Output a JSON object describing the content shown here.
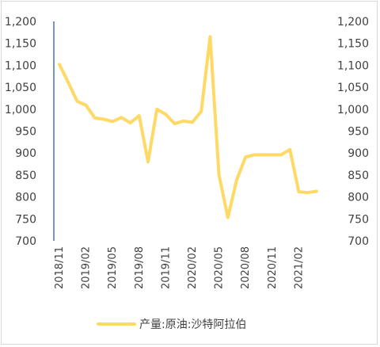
{
  "chart_data": {
    "type": "line",
    "title": "",
    "xlabel": "",
    "ylabel": "",
    "ylim": [
      700,
      1200
    ],
    "y_ticks": [
      700,
      750,
      800,
      850,
      900,
      950,
      1000,
      1050,
      1100,
      1150,
      1200
    ],
    "y_tick_labels": [
      "700",
      "750",
      "800",
      "850",
      "900",
      "950",
      "1,000",
      "1,050",
      "1,100",
      "1,150",
      "1,200"
    ],
    "secondary_y_axis": true,
    "grid": false,
    "legend_position": "bottom",
    "x_tick_labels": [
      "2018/11",
      "2019/02",
      "2019/05",
      "2019/08",
      "2019/11",
      "2020/02",
      "2020/05",
      "2020/08",
      "2020/11",
      "2021/02"
    ],
    "series": [
      {
        "name": "产量:原油:沙特阿拉伯",
        "color": "#FFD966",
        "x": [
          "2018/11",
          "2018/12",
          "2019/01",
          "2019/02",
          "2019/03",
          "2019/04",
          "2019/05",
          "2019/06",
          "2019/07",
          "2019/08",
          "2019/09",
          "2019/10",
          "2019/11",
          "2019/12",
          "2020/01",
          "2020/02",
          "2020/03",
          "2020/04",
          "2020/05",
          "2020/06",
          "2020/07",
          "2020/08",
          "2020/09",
          "2020/10",
          "2020/11",
          "2020/12",
          "2021/01",
          "2021/02",
          "2021/03",
          "2021/04"
        ],
        "values": [
          1102,
          1061,
          1018,
          1009,
          980,
          977,
          972,
          981,
          969,
          985,
          880,
          1000,
          988,
          967,
          973,
          970,
          995,
          1165,
          850,
          753,
          839,
          891,
          896,
          896,
          896,
          896,
          908,
          812,
          810,
          813
        ]
      }
    ]
  }
}
